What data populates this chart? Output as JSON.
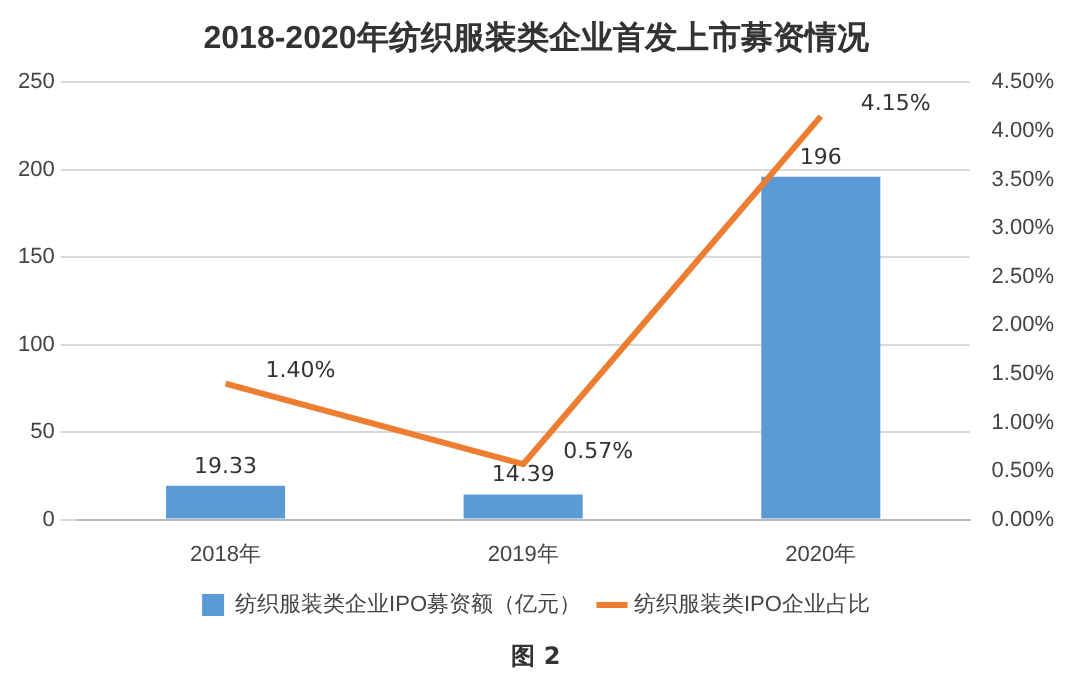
{
  "chart_data": {
    "type": "bar",
    "title": "2018-2020年纺织服装类企业首发上市募资情况",
    "categories": [
      "2018年",
      "2019年",
      "2020年"
    ],
    "series": [
      {
        "name": "纺织服装类企业IPO募资额（亿元）",
        "color": "#5b9bd5",
        "values": [
          19.33,
          14.39,
          196
        ],
        "value_labels": [
          "19.33",
          "14.39",
          "196"
        ]
      },
      {
        "name": "纺织服装类IPO企业占比",
        "type": "line",
        "axis": "y2",
        "color": "#ed7d31",
        "values": [
          1.4,
          0.57,
          4.15
        ],
        "value_labels": [
          "1.40%",
          "0.57%",
          "4.15%"
        ]
      }
    ],
    "ylim": [
      0,
      250
    ],
    "yticks": [
      0,
      50,
      100,
      150,
      200,
      250
    ],
    "y2lim": [
      0,
      4.5
    ],
    "y2ticks": [
      {
        "value": 0,
        "label": "0.00%"
      },
      {
        "value": 0.5,
        "label": "0.50%"
      },
      {
        "value": 1,
        "label": "1.00%"
      },
      {
        "value": 1.5,
        "label": "1.50%"
      },
      {
        "value": 2,
        "label": "2.00%"
      },
      {
        "value": 2.5,
        "label": "2.50%"
      },
      {
        "value": 3,
        "label": "3.00%"
      },
      {
        "value": 3.5,
        "label": "3.50%"
      },
      {
        "value": 4,
        "label": "4.00%"
      },
      {
        "value": 4.5,
        "label": "4.50%"
      }
    ],
    "grid": "y",
    "legend": "bottom",
    "marker": "none",
    "annotations": [
      "图 2"
    ]
  }
}
